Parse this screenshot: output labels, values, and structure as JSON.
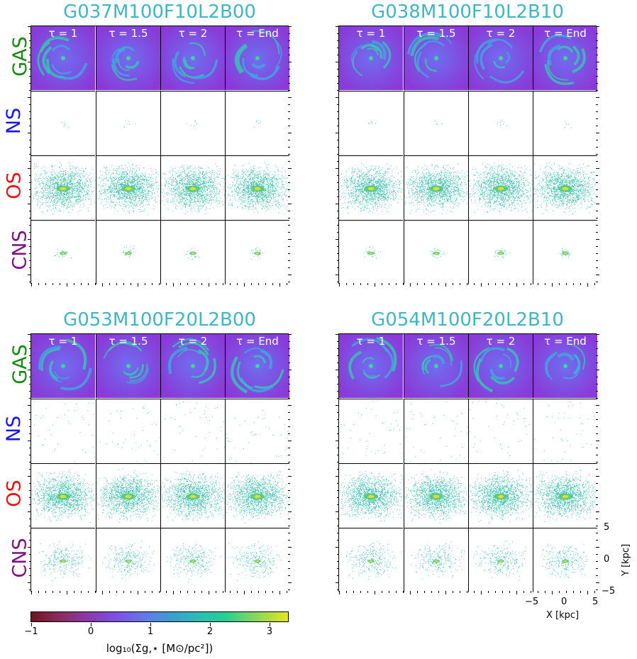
{
  "blocks": [
    {
      "title": "G037M100F10L2B00"
    },
    {
      "title": "G038M100F10L2B10"
    },
    {
      "title": "G053M100F20L2B00"
    },
    {
      "title": "G054M100F20L2B10"
    }
  ],
  "columns": [
    "τ = 1",
    "τ = 1.5",
    "τ = 2",
    "τ = End"
  ],
  "rows": [
    {
      "label": "GAS",
      "color": "#128a12"
    },
    {
      "label": "NS",
      "color": "#1616e6"
    },
    {
      "label": "OS",
      "color": "#f01010"
    },
    {
      "label": "CNS",
      "color": "#7a1280"
    }
  ],
  "axes": {
    "xlabel": "X [kpc]",
    "ylabel": "Y [kpc]",
    "xticks": [
      "−5",
      "0",
      "5"
    ],
    "yticks": [
      "5",
      "0",
      "−5"
    ]
  },
  "colorbar": {
    "label": "log₁₀(Σg,⋆  [M⊙/pc²])",
    "ticks": [
      "−1",
      "0",
      "1",
      "2",
      "3"
    ],
    "range": [
      -1,
      3.3
    ]
  }
}
